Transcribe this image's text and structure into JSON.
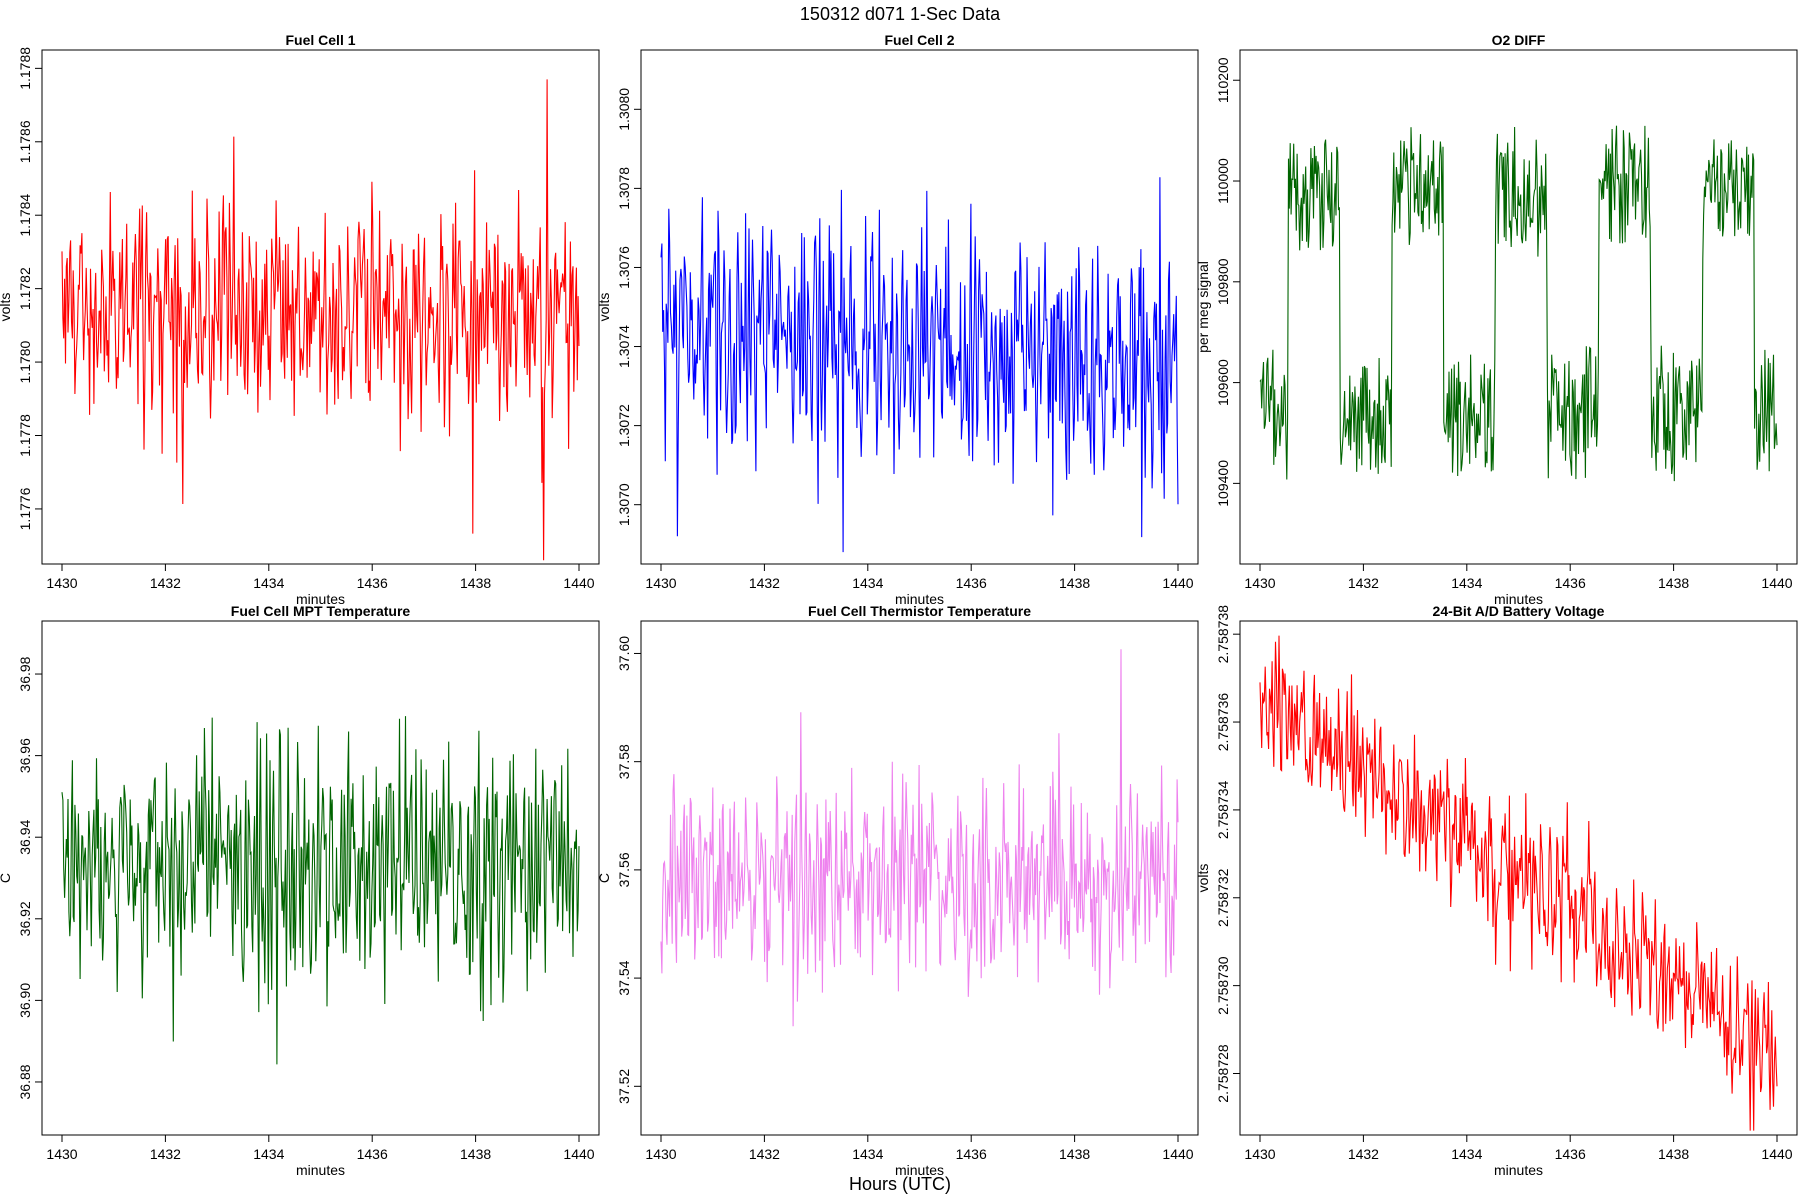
{
  "figure": {
    "title": "150312   d071   1-Sec Data",
    "footer": "Hours (UTC)"
  },
  "chart_data": [
    {
      "type": "line",
      "title": "Fuel Cell 1",
      "xlabel": "minutes",
      "ylabel": "volts",
      "color": "#ff0000",
      "xlim": [
        1430,
        1440
      ],
      "ylim": [
        1.17745,
        1.17885
      ],
      "xticks": [
        1430,
        1432,
        1434,
        1436,
        1438,
        1440
      ],
      "yticks": [
        1.1776,
        1.1778,
        1.178,
        1.1782,
        1.1784,
        1.1786,
        1.1788
      ],
      "ytick_labels": [
        "1.1776",
        "1.1778",
        "1.1780",
        "1.1782",
        "1.1784",
        "1.1786",
        "1.1788"
      ],
      "series": [
        {
          "x": [
            1430,
            1440
          ],
          "trend": [
            1.17815,
            1.17812
          ],
          "noise": 0.00026,
          "period": 0.12,
          "min_seen": 1.17746,
          "max_seen": 1.17877,
          "seed": 11
        }
      ]
    },
    {
      "type": "line",
      "title": "Fuel Cell 2",
      "xlabel": "minutes",
      "ylabel": "volts",
      "color": "#0000ff",
      "xlim": [
        1430,
        1440
      ],
      "ylim": [
        1.30685,
        1.30815
      ],
      "xticks": [
        1430,
        1432,
        1434,
        1436,
        1438,
        1440
      ],
      "yticks": [
        1.307,
        1.3072,
        1.3074,
        1.3076,
        1.3078,
        1.308
      ],
      "ytick_labels": [
        "1.3070",
        "1.3072",
        "1.3074",
        "1.3076",
        "1.3078",
        "1.3080"
      ],
      "series": [
        {
          "x": [
            1430,
            1440
          ],
          "trend": [
            1.30745,
            1.30735
          ],
          "noise": 0.00028,
          "period": 0.12,
          "min_seen": 1.30688,
          "max_seen": 1.30811,
          "seed": 23
        }
      ]
    },
    {
      "type": "line",
      "title": "O2 DIFF",
      "xlabel": "minutes",
      "ylabel": "per meg signal",
      "color": "#006400",
      "xlim": [
        1430,
        1440
      ],
      "ylim": [
        109240,
        110260
      ],
      "xticks": [
        1430,
        1432,
        1434,
        1436,
        1438,
        1440
      ],
      "yticks": [
        109400,
        109600,
        109800,
        110000,
        110200
      ],
      "ytick_labels": [
        "109400",
        "109600",
        "109800",
        "110000",
        "110200"
      ],
      "series": [
        {
          "x": [
            1430,
            1440
          ],
          "square_high": 109980,
          "square_low": 109540,
          "square_period": 2.0,
          "noise": 110,
          "min_seen": 109260,
          "max_seen": 110230,
          "seed": 37
        }
      ]
    },
    {
      "type": "line",
      "title": "Fuel Cell MPT Temperature",
      "xlabel": "minutes",
      "ylabel": "C",
      "color": "#006400",
      "xlim": [
        1430,
        1440
      ],
      "ylim": [
        36.867,
        36.993
      ],
      "xticks": [
        1430,
        1432,
        1434,
        1436,
        1438,
        1440
      ],
      "yticks": [
        36.88,
        36.9,
        36.92,
        36.94,
        36.96,
        36.98
      ],
      "ytick_labels": [
        "36.88",
        "36.90",
        "36.92",
        "36.94",
        "36.96",
        "36.98"
      ],
      "series": [
        {
          "x": [
            1430,
            1440
          ],
          "trend": [
            36.933,
            36.933
          ],
          "noise": 0.026,
          "period": 0.03,
          "min_seen": 36.871,
          "max_seen": 36.988,
          "seed": 41
        }
      ]
    },
    {
      "type": "line",
      "title": "Fuel Cell Thermistor Temperature",
      "xlabel": "minutes",
      "ylabel": "C",
      "color": "#ee82ee",
      "xlim": [
        1430,
        1440
      ],
      "ylim": [
        37.511,
        37.606
      ],
      "xticks": [
        1430,
        1432,
        1434,
        1436,
        1438,
        1440
      ],
      "yticks": [
        37.52,
        37.54,
        37.56,
        37.58,
        37.6
      ],
      "ytick_labels": [
        "37.52",
        "37.54",
        "37.56",
        "37.58",
        "37.60"
      ],
      "series": [
        {
          "x": [
            1430,
            1440
          ],
          "trend": [
            37.558,
            37.558
          ],
          "noise": 0.016,
          "period": 0.03,
          "min_seen": 37.515,
          "max_seen": 37.602,
          "seed": 53
        }
      ]
    },
    {
      "type": "line",
      "title": "24-Bit A/D Battery Voltage",
      "xlabel": "minutes",
      "ylabel": "volts",
      "color": "#ff0000",
      "xlim": [
        1430,
        1440
      ],
      "ylim": [
        2.7587266,
        2.7587383
      ],
      "xticks": [
        1430,
        1432,
        1434,
        1436,
        1438,
        1440
      ],
      "yticks": [
        2.758728,
        2.75873,
        2.758732,
        2.758734,
        2.758736,
        2.758738
      ],
      "ytick_labels": [
        "2.758728",
        "2.758730",
        "2.758732",
        "2.758734",
        "2.758736",
        "2.758738"
      ],
      "series": [
        {
          "x": [
            1430,
            1440
          ],
          "trend": [
            2.7587365,
            2.7587285
          ],
          "noise": 1.3e-06,
          "period": 0.05,
          "min_seen": 2.7587267,
          "max_seen": 2.758738,
          "seed": 67
        }
      ]
    }
  ]
}
